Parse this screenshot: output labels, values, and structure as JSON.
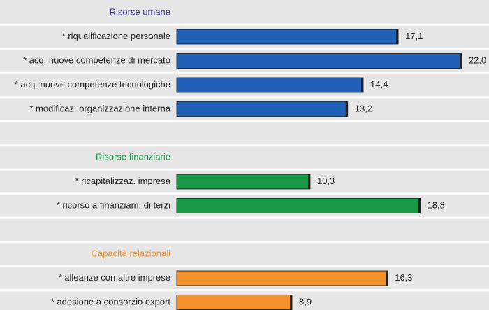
{
  "chart_data": {
    "type": "bar",
    "xlim": [
      0,
      24
    ],
    "groups": [
      {
        "name": "Risorse umane",
        "color": "#1f5fb8",
        "label_color": "#3a3aa0",
        "categories": [
          "* riqualificazione personale",
          "* acq. nuove competenze di mercato",
          "* acq. nuove competenze tecnologiche",
          "* modificaz. organizzazione interna"
        ],
        "values": [
          17.1,
          22.0,
          14.4,
          13.2
        ],
        "value_labels": [
          "17,1",
          "22,0",
          "14,4",
          "13,2"
        ]
      },
      {
        "name": "Risorse finanziarie",
        "color": "#1a9a48",
        "label_color": "#1a9a48",
        "categories": [
          "* ricapitalizzaz. impresa",
          "* ricorso a finanziam. di terzi"
        ],
        "values": [
          10.3,
          18.8
        ],
        "value_labels": [
          "10,3",
          "18,8"
        ]
      },
      {
        "name": "Capacità relazionali",
        "color": "#f3922c",
        "label_color": "#f3922c",
        "categories": [
          "* alleanze con altre imprese",
          "* adesione a consorzio export"
        ],
        "values": [
          16.3,
          8.9
        ],
        "value_labels": [
          "16,3",
          "8,9"
        ]
      }
    ]
  }
}
